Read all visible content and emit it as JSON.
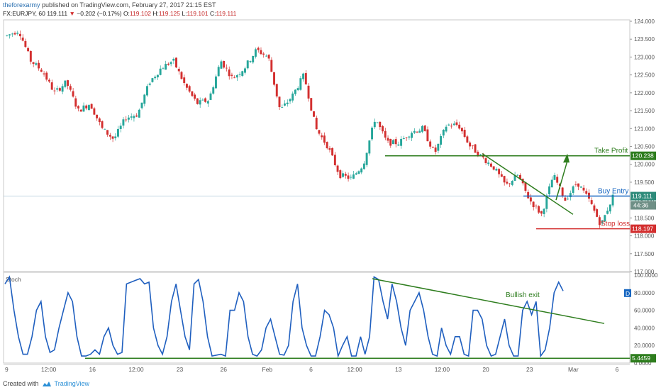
{
  "header": {
    "author": "theforexarmy",
    "published": "published on TradingView.com, February 27, 2017 21:15 EST",
    "symbol": "FX:EURJPY, 60",
    "last": "119.111",
    "change": "−0.202 (−0.17%)",
    "open_label": "O:",
    "open": "119.102",
    "high_label": "H:",
    "high": "119.125",
    "low_label": "L:",
    "low": "119.101",
    "close_label": "C:",
    "close": "119.111"
  },
  "footer": {
    "created_with": "Created with",
    "brand": "TradingView"
  },
  "colors": {
    "bull": "#26a69a",
    "bear": "#d32f2f",
    "osc": "#1f5fbf",
    "green": "#2e7d1e",
    "blue": "#1565c0",
    "red": "#d32f2f"
  },
  "chart_data": [
    {
      "type": "candlestick",
      "title": "FX:EURJPY, 60",
      "ylim": [
        117.0,
        124.0
      ],
      "yticks": [
        "124.000",
        "123.500",
        "123.000",
        "122.500",
        "122.000",
        "121.500",
        "121.000",
        "120.500",
        "120.000",
        "119.500",
        "119.000",
        "118.500",
        "118.000",
        "117.500",
        "117.000"
      ],
      "x_ticks": [
        "9",
        "12:00",
        "16",
        "12:00",
        "23",
        "26",
        "Feb",
        "6",
        "12:00",
        "13",
        "12:00",
        "20",
        "23",
        "Mar",
        "6"
      ],
      "path": [
        123.6,
        123.75,
        122.9,
        122.6,
        122.0,
        122.3,
        121.5,
        121.7,
        121.0,
        120.7,
        121.3,
        121.4,
        122.3,
        122.7,
        122.9,
        122.2,
        121.7,
        121.8,
        122.9,
        122.4,
        122.7,
        123.2,
        123.0,
        121.5,
        121.9,
        122.5,
        121.0,
        120.5,
        119.7,
        119.6,
        120.0,
        121.3,
        120.6,
        120.6,
        120.9,
        121.0,
        120.3,
        121.1,
        121.1,
        120.5,
        120.2,
        119.9,
        119.4,
        119.7,
        119.0,
        118.6,
        119.7,
        119.0,
        119.5,
        119.0,
        118.3,
        119.1
      ],
      "last_price": 119.111,
      "lines": [
        {
          "label": "Take Profit",
          "price": 120.238,
          "tag": "120.238"
        },
        {
          "label": "Buy Entry",
          "price": 119.111,
          "tag": "119.111",
          "countdown": "44:36"
        },
        {
          "label": "Stop loss",
          "price": 118.197,
          "tag": "118.197"
        }
      ]
    },
    {
      "type": "line",
      "title": "Stoch",
      "ylim": [
        0,
        100
      ],
      "yticks": [
        "100.0000",
        "80.0000",
        "60.0000",
        "40.0000",
        "20.0000",
        "0.0000"
      ],
      "values": [
        90,
        98,
        60,
        30,
        10,
        10,
        30,
        60,
        70,
        30,
        12,
        15,
        40,
        60,
        80,
        70,
        30,
        8,
        8,
        10,
        15,
        10,
        30,
        40,
        20,
        10,
        12,
        90,
        92,
        94,
        96,
        90,
        92,
        40,
        20,
        10,
        30,
        70,
        90,
        60,
        30,
        15,
        90,
        95,
        70,
        30,
        8,
        9,
        10,
        8,
        60,
        60,
        80,
        70,
        30,
        10,
        8,
        15,
        40,
        50,
        30,
        10,
        9,
        20,
        70,
        90,
        40,
        20,
        8,
        8,
        30,
        60,
        55,
        40,
        8,
        20,
        30,
        8,
        8,
        30,
        10,
        30,
        98,
        95,
        70,
        50,
        90,
        70,
        40,
        20,
        60,
        70,
        80,
        60,
        30,
        10,
        8,
        40,
        20,
        10,
        30,
        30,
        10,
        8,
        60,
        60,
        50,
        20,
        8,
        10,
        30,
        50,
        20,
        8,
        8,
        60,
        70,
        55,
        70,
        8,
        15,
        40,
        80,
        92,
        82
      ],
      "current": "5.4459",
      "annotation": "Bullish exit",
      "badge": "D"
    }
  ]
}
